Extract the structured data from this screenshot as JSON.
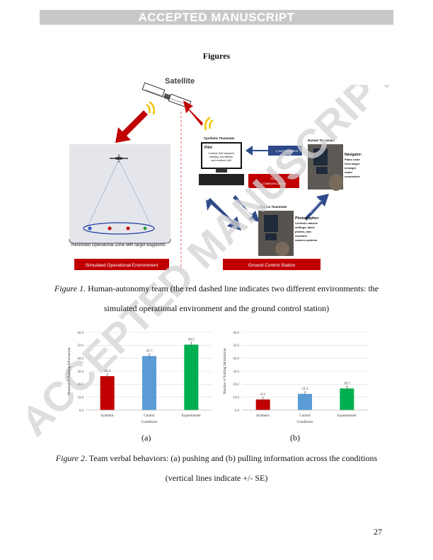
{
  "banner": "ACCEPTED MANUSCRIPT",
  "heading": "Figures",
  "watermark": "ACCEPTED MANUSCRIPT",
  "figure1": {
    "satellite_label": "Satellite",
    "synthetic_teammate_label": "Synthetic Teammate",
    "pilot_title": "Pilot",
    "pilot_desc": [
      "Controls UAV airspeed,",
      "heading, and altitude,",
      "and monitors UAV"
    ],
    "human_teammate_top": "Human Teammate",
    "navigator_title": "Navigator:",
    "navigator_desc": [
      "Plans route",
      "from target",
      "to target",
      "under",
      "constraints"
    ],
    "information_label": "1) INFORMATION",
    "text_comm_label": [
      "TEXT",
      "COMMUNICATION"
    ],
    "arrow_left_label": "2) INFORMATION",
    "arrow_mid_label": "3) INFORMATION",
    "arrow_right_label": "INFORMATION",
    "human_teammate_bottom": "Human Teammate",
    "photographer_title": "Photographer:",
    "photographer_desc": [
      "Controls camera",
      "settings, takes",
      "photos, and",
      "monitors",
      "camera systems"
    ],
    "restricted_zone_label": "Restricted Operational Zone with target waypoints",
    "sim_env_label": "Simulated Operational Environment",
    "gcs_label": "Ground Control Station"
  },
  "figure1_caption": {
    "label": "Figure 1.",
    "text": " Human-autonomy team (the red dashed line indicates two different environments: the",
    "line2": "simulated operational environment and the ground control station)"
  },
  "chart_data": [
    {
      "type": "bar",
      "categories": [
        "Synthetic",
        "Control",
        "Experimenter"
      ],
      "values": [
        26.2,
        41.7,
        50.5
      ],
      "colors": [
        "#c00000",
        "#5b9bd5",
        "#00b050"
      ],
      "xlabel": "Conditions",
      "ylabel": "Number of Pushing Information",
      "ylim": [
        0,
        60
      ],
      "yticks": [
        "0.0",
        "10.0",
        "20.0",
        "30.0",
        "40.0",
        "50.0",
        "60.0"
      ],
      "value_labels": [
        "26.2",
        "41.7",
        "50.5"
      ],
      "subcaption": "(a)"
    },
    {
      "type": "bar",
      "categories": [
        "Synthetic",
        "Control",
        "Experimenter"
      ],
      "values": [
        8.2,
        12.5,
        16.7
      ],
      "colors": [
        "#c00000",
        "#5b9bd5",
        "#00b050"
      ],
      "xlabel": "Conditions",
      "ylabel": "Number of Pulling Information",
      "ylim": [
        0,
        60
      ],
      "yticks": [
        "0.0",
        "10.0",
        "20.0",
        "30.0",
        "40.0",
        "50.0",
        "60.0"
      ],
      "value_labels": [
        "8.2",
        "12.5",
        "16.7"
      ],
      "subcaption": "(b)"
    }
  ],
  "figure2_caption": {
    "label": "Figure 2",
    "text": ". Team verbal behaviors: (a) pushing and (b) pulling information across the conditions",
    "line2": "(vertical lines indicate +/- SE)"
  },
  "page_number": "27"
}
